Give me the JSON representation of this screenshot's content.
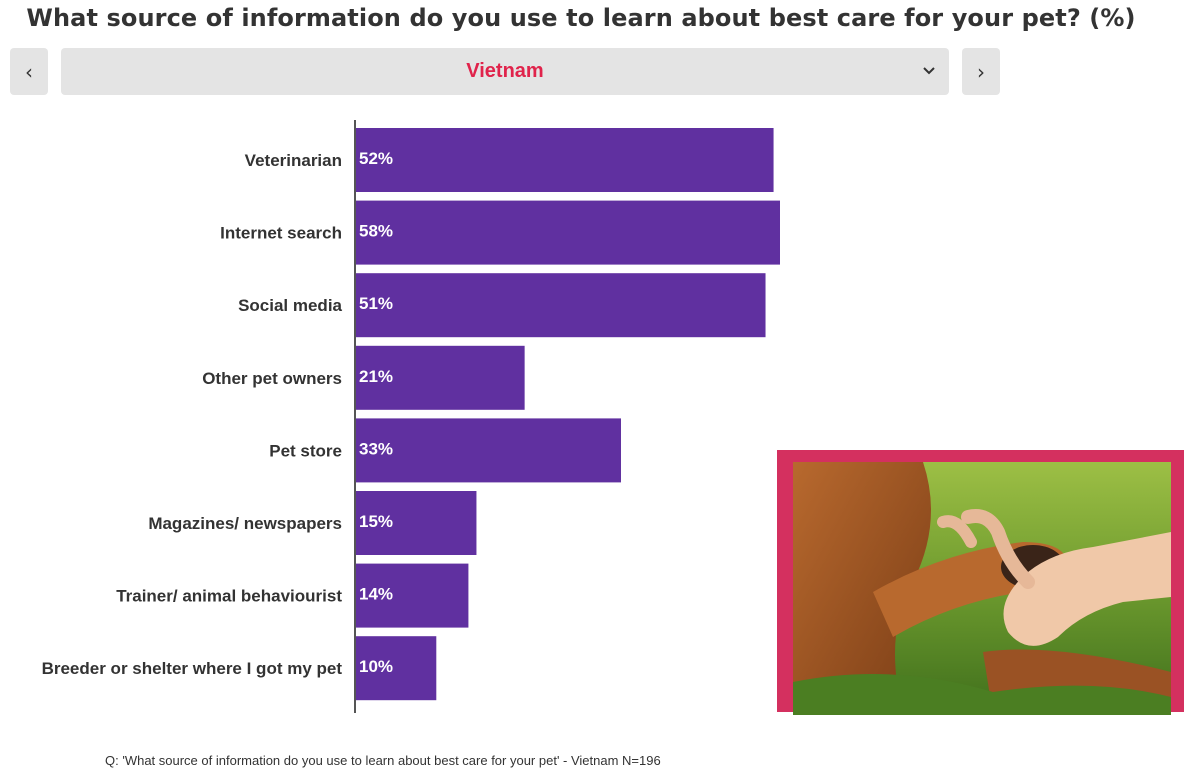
{
  "title": "What source of information do you use to learn about best care for your pet? (%)",
  "nav": {
    "prev_glyph": "‹",
    "next_glyph": "›"
  },
  "selector": {
    "value": "Vietnam",
    "color": "#e0234b"
  },
  "colors": {
    "bar": "#6030a0",
    "frame": "#d4305f"
  },
  "chart_data": {
    "type": "bar",
    "orientation": "horizontal",
    "categories": [
      "Veterinarian",
      "Internet search",
      "Social media",
      "Other pet owners",
      "Pet store",
      "Magazines/ newspapers",
      "Trainer/ animal behaviourist",
      "Breeder or shelter where I got my pet"
    ],
    "values": [
      52,
      58,
      51,
      21,
      33,
      15,
      14,
      10
    ],
    "data_labels": [
      "52%",
      "58%",
      "51%",
      "21%",
      "33%",
      "15%",
      "14%",
      "10%"
    ],
    "xlim": [
      0,
      100
    ],
    "grid": false
  },
  "footnote": "Q: 'What source of information do you use to learn about best care for your pet' - Vietnam N=196"
}
